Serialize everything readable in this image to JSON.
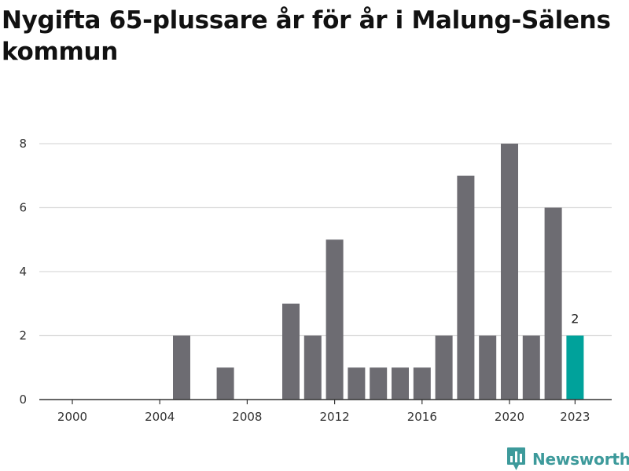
{
  "chart_data": {
    "type": "bar",
    "title": "Nygifta 65-plussare år för år i Malung-Sälens kommun",
    "x": [
      2000,
      2001,
      2002,
      2003,
      2004,
      2005,
      2006,
      2007,
      2008,
      2009,
      2010,
      2011,
      2012,
      2013,
      2014,
      2015,
      2016,
      2017,
      2018,
      2019,
      2020,
      2021,
      2022,
      2023
    ],
    "values": [
      0,
      0,
      0,
      0,
      0,
      2,
      0,
      1,
      0,
      0,
      3,
      2,
      5,
      1,
      1,
      1,
      1,
      2,
      7,
      2,
      8,
      2,
      6,
      2
    ],
    "x_tick_labels": [
      "2000",
      "2004",
      "2008",
      "2012",
      "2016",
      "2020",
      "2023"
    ],
    "y_ticks": [
      0,
      2,
      4,
      6,
      8
    ],
    "ylim": [
      0,
      8
    ],
    "xlabel": "",
    "ylabel": "",
    "grid": true,
    "highlight": {
      "year": 2023,
      "label": "2"
    },
    "colors": {
      "bar": "#6d6c72",
      "highlight": "#00a29b",
      "grid": "#d9d9d9",
      "axis": "#333333"
    }
  },
  "brand": {
    "name": "Newsworthy",
    "icon": "bar-chart-pin-icon",
    "color": "#3d9a9b"
  }
}
